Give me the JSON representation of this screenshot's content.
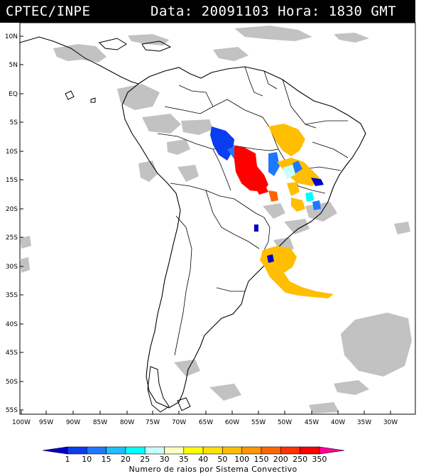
{
  "header": {
    "left_title": "CPTEC/INPE",
    "right_title": "Data: 20091103 Hora: 1830 GMT"
  },
  "map": {
    "lat_labels": [
      "10N",
      "5N",
      "EQ",
      "5S",
      "10S",
      "15S",
      "20S",
      "25S",
      "30S",
      "35S",
      "40S",
      "45S",
      "50S",
      "55S"
    ],
    "lon_labels": [
      "100W",
      "95W",
      "90W",
      "85W",
      "80W",
      "75W",
      "70W",
      "65W",
      "60W",
      "55W",
      "50W",
      "45W",
      "40W",
      "35W",
      "30W"
    ],
    "colors": {
      "land_outline": "#000000",
      "cloud": "#c0c0c0"
    }
  },
  "legend": {
    "caption": "Numero de raios por Sistema Convectivo",
    "ticks": [
      "1",
      "10",
      "15",
      "20",
      "25",
      "30",
      "35",
      "40",
      "50",
      "100",
      "150",
      "200",
      "250",
      "350"
    ],
    "colors": [
      "#0000c8",
      "#0a3cf0",
      "#1e78ff",
      "#1ebeff",
      "#00ffff",
      "#c8ffff",
      "#ffffc0",
      "#ffff00",
      "#ffe000",
      "#ffbe00",
      "#ff9600",
      "#ff6400",
      "#ff3200",
      "#ff0000",
      "#ff0096"
    ]
  }
}
